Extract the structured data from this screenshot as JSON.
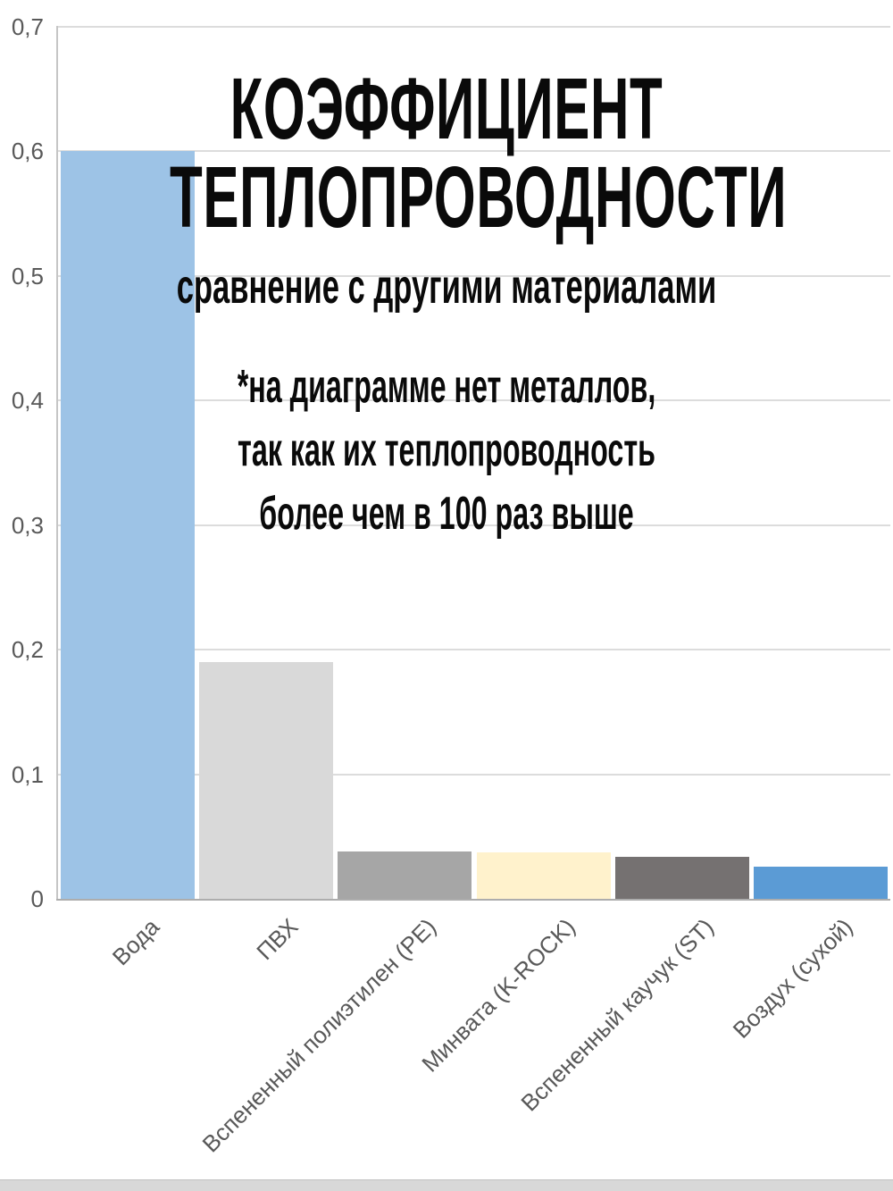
{
  "chart_data": {
    "type": "bar",
    "title": "КОЭФФИЦИЕНТ ТЕПЛОПРОВОДНОСТИ",
    "title_lines": [
      "КОЭФФИЦИЕНТ",
      "ТЕПЛОПРОВОДНОСТИ"
    ],
    "subtitle": "сравнение с другими материалами",
    "annotation_lines": [
      "*на диаграмме нет металлов,",
      "так как их теплопроводность",
      "более чем в 100 раз выше"
    ],
    "categories": [
      "Вода",
      "ПВХ",
      "Вспененный полиэтилен (PE)",
      "Минвата (K-ROCK)",
      "Вспененный каучук (ST)",
      "Воздух (сухой)"
    ],
    "values": [
      0.6,
      0.19,
      0.038,
      0.037,
      0.034,
      0.026
    ],
    "bar_colors": [
      "#9DC3E6",
      "#D9D9D9",
      "#A6A6A6",
      "#FFF2CC",
      "#757171",
      "#5B9BD5"
    ],
    "xlabel": "",
    "ylabel": "",
    "ylim": [
      0,
      0.7
    ],
    "yticks": [
      0,
      0.1,
      0.2,
      0.3,
      0.4,
      0.5,
      0.6,
      0.7
    ],
    "ytick_labels": [
      "0",
      "0,1",
      "0,2",
      "0,3",
      "0,4",
      "0,5",
      "0,6",
      "0,7"
    ],
    "grid": true,
    "legend": false,
    "gridline_color": "#DCDCDC",
    "axis_color": "#ADADAD",
    "tick_label_color": "#595959",
    "title_color": "#0a0a0a"
  }
}
